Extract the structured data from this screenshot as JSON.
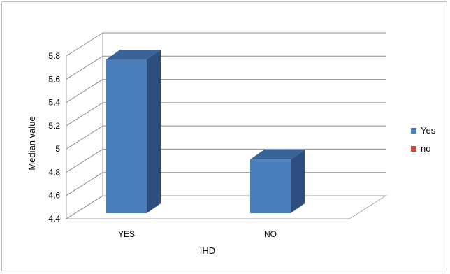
{
  "chart_data": {
    "type": "bar",
    "categories": [
      "YES",
      "NO"
    ],
    "series": [
      {
        "name": "Yes",
        "values": [
          5.77,
          4.91
        ]
      },
      {
        "name": "no",
        "values": [
          null,
          null
        ]
      }
    ],
    "title": "",
    "xlabel": "IHD",
    "ylabel": "Median value",
    "ylim": [
      4.4,
      5.8
    ],
    "yticks": [
      4.4,
      4.6,
      4.8,
      5,
      5.2,
      5.4,
      5.6,
      5.8
    ],
    "ytick_labels": [
      "4.4",
      "4.6",
      "4.8",
      "5",
      "5.2",
      "5.4",
      "5.6",
      "5.8"
    ],
    "grid": true,
    "legend": "right",
    "colors": {
      "Yes": "#4A7EBB",
      "no": "#BE4B48"
    }
  }
}
